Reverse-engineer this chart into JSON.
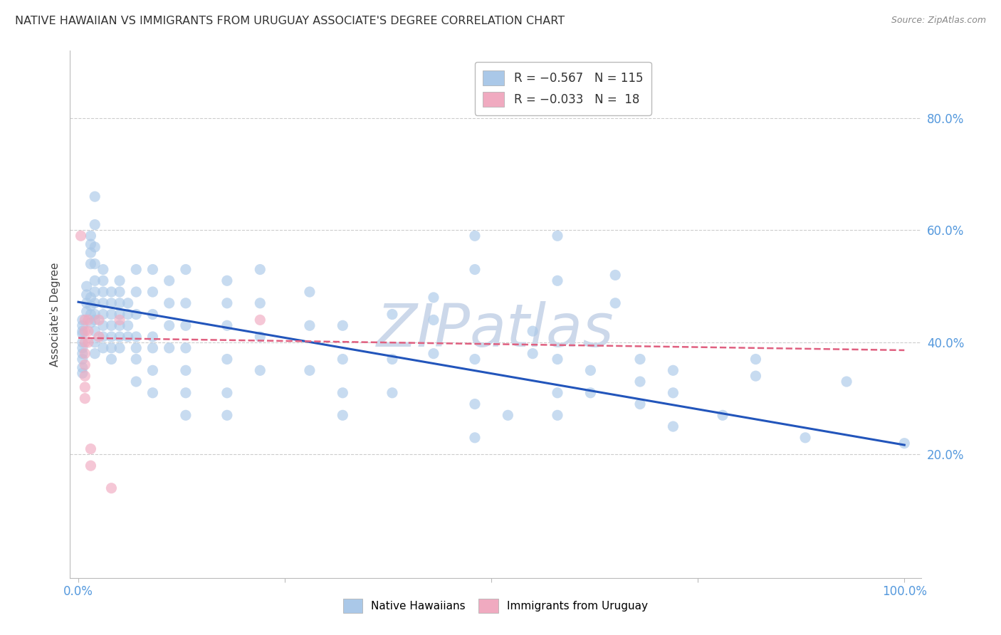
{
  "title": "NATIVE HAWAIIAN VS IMMIGRANTS FROM URUGUAY ASSOCIATE'S DEGREE CORRELATION CHART",
  "source": "Source: ZipAtlas.com",
  "ylabel": "Associate's Degree",
  "ytick_values": [
    0.2,
    0.4,
    0.6,
    0.8
  ],
  "xlim": [
    -0.01,
    1.02
  ],
  "ylim": [
    -0.02,
    0.92
  ],
  "watermark": "ZIPatlas",
  "blue_intercept": 0.472,
  "blue_slope": -0.255,
  "pink_intercept": 0.408,
  "pink_slope": -0.022,
  "blue_scatter": [
    [
      0.005,
      0.44
    ],
    [
      0.005,
      0.43
    ],
    [
      0.005,
      0.42
    ],
    [
      0.005,
      0.415
    ],
    [
      0.005,
      0.4
    ],
    [
      0.005,
      0.39
    ],
    [
      0.005,
      0.38
    ],
    [
      0.005,
      0.37
    ],
    [
      0.005,
      0.355
    ],
    [
      0.005,
      0.345
    ],
    [
      0.01,
      0.5
    ],
    [
      0.01,
      0.485
    ],
    [
      0.01,
      0.47
    ],
    [
      0.01,
      0.455
    ],
    [
      0.015,
      0.59
    ],
    [
      0.015,
      0.575
    ],
    [
      0.015,
      0.56
    ],
    [
      0.015,
      0.54
    ],
    [
      0.015,
      0.48
    ],
    [
      0.015,
      0.465
    ],
    [
      0.015,
      0.45
    ],
    [
      0.015,
      0.435
    ],
    [
      0.02,
      0.66
    ],
    [
      0.02,
      0.61
    ],
    [
      0.02,
      0.57
    ],
    [
      0.02,
      0.54
    ],
    [
      0.02,
      0.51
    ],
    [
      0.02,
      0.49
    ],
    [
      0.02,
      0.47
    ],
    [
      0.02,
      0.45
    ],
    [
      0.02,
      0.44
    ],
    [
      0.02,
      0.42
    ],
    [
      0.02,
      0.4
    ],
    [
      0.02,
      0.38
    ],
    [
      0.03,
      0.53
    ],
    [
      0.03,
      0.51
    ],
    [
      0.03,
      0.49
    ],
    [
      0.03,
      0.47
    ],
    [
      0.03,
      0.45
    ],
    [
      0.03,
      0.43
    ],
    [
      0.03,
      0.41
    ],
    [
      0.03,
      0.39
    ],
    [
      0.04,
      0.49
    ],
    [
      0.04,
      0.47
    ],
    [
      0.04,
      0.45
    ],
    [
      0.04,
      0.43
    ],
    [
      0.04,
      0.41
    ],
    [
      0.04,
      0.39
    ],
    [
      0.04,
      0.37
    ],
    [
      0.05,
      0.51
    ],
    [
      0.05,
      0.49
    ],
    [
      0.05,
      0.47
    ],
    [
      0.05,
      0.45
    ],
    [
      0.05,
      0.43
    ],
    [
      0.05,
      0.41
    ],
    [
      0.05,
      0.39
    ],
    [
      0.06,
      0.47
    ],
    [
      0.06,
      0.45
    ],
    [
      0.06,
      0.43
    ],
    [
      0.06,
      0.41
    ],
    [
      0.07,
      0.53
    ],
    [
      0.07,
      0.49
    ],
    [
      0.07,
      0.45
    ],
    [
      0.07,
      0.41
    ],
    [
      0.07,
      0.39
    ],
    [
      0.07,
      0.37
    ],
    [
      0.07,
      0.33
    ],
    [
      0.09,
      0.53
    ],
    [
      0.09,
      0.49
    ],
    [
      0.09,
      0.45
    ],
    [
      0.09,
      0.41
    ],
    [
      0.09,
      0.39
    ],
    [
      0.09,
      0.35
    ],
    [
      0.09,
      0.31
    ],
    [
      0.11,
      0.51
    ],
    [
      0.11,
      0.47
    ],
    [
      0.11,
      0.43
    ],
    [
      0.11,
      0.39
    ],
    [
      0.13,
      0.53
    ],
    [
      0.13,
      0.47
    ],
    [
      0.13,
      0.43
    ],
    [
      0.13,
      0.39
    ],
    [
      0.13,
      0.35
    ],
    [
      0.13,
      0.31
    ],
    [
      0.13,
      0.27
    ],
    [
      0.18,
      0.51
    ],
    [
      0.18,
      0.47
    ],
    [
      0.18,
      0.43
    ],
    [
      0.18,
      0.37
    ],
    [
      0.18,
      0.31
    ],
    [
      0.18,
      0.27
    ],
    [
      0.22,
      0.53
    ],
    [
      0.22,
      0.47
    ],
    [
      0.22,
      0.41
    ],
    [
      0.22,
      0.35
    ],
    [
      0.28,
      0.49
    ],
    [
      0.28,
      0.43
    ],
    [
      0.28,
      0.35
    ],
    [
      0.32,
      0.43
    ],
    [
      0.32,
      0.37
    ],
    [
      0.32,
      0.31
    ],
    [
      0.32,
      0.27
    ],
    [
      0.38,
      0.45
    ],
    [
      0.38,
      0.37
    ],
    [
      0.38,
      0.31
    ],
    [
      0.43,
      0.48
    ],
    [
      0.43,
      0.44
    ],
    [
      0.43,
      0.38
    ],
    [
      0.48,
      0.59
    ],
    [
      0.48,
      0.53
    ],
    [
      0.48,
      0.37
    ],
    [
      0.48,
      0.29
    ],
    [
      0.48,
      0.23
    ],
    [
      0.52,
      0.27
    ],
    [
      0.55,
      0.42
    ],
    [
      0.55,
      0.38
    ],
    [
      0.58,
      0.59
    ],
    [
      0.58,
      0.51
    ],
    [
      0.58,
      0.37
    ],
    [
      0.58,
      0.31
    ],
    [
      0.58,
      0.27
    ],
    [
      0.62,
      0.35
    ],
    [
      0.62,
      0.31
    ],
    [
      0.65,
      0.52
    ],
    [
      0.65,
      0.47
    ],
    [
      0.68,
      0.37
    ],
    [
      0.68,
      0.33
    ],
    [
      0.68,
      0.29
    ],
    [
      0.72,
      0.35
    ],
    [
      0.72,
      0.31
    ],
    [
      0.72,
      0.25
    ],
    [
      0.78,
      0.27
    ],
    [
      0.82,
      0.37
    ],
    [
      0.82,
      0.34
    ],
    [
      0.88,
      0.23
    ],
    [
      0.93,
      0.33
    ],
    [
      1.0,
      0.22
    ]
  ],
  "pink_scatter": [
    [
      0.003,
      0.59
    ],
    [
      0.008,
      0.44
    ],
    [
      0.008,
      0.42
    ],
    [
      0.008,
      0.4
    ],
    [
      0.008,
      0.38
    ],
    [
      0.008,
      0.36
    ],
    [
      0.008,
      0.34
    ],
    [
      0.008,
      0.32
    ],
    [
      0.008,
      0.3
    ],
    [
      0.012,
      0.44
    ],
    [
      0.012,
      0.42
    ],
    [
      0.012,
      0.4
    ],
    [
      0.015,
      0.21
    ],
    [
      0.015,
      0.18
    ],
    [
      0.025,
      0.44
    ],
    [
      0.025,
      0.41
    ],
    [
      0.04,
      0.14
    ],
    [
      0.05,
      0.44
    ],
    [
      0.22,
      0.44
    ]
  ],
  "blue_color": "#aac8e8",
  "pink_color": "#f0aac0",
  "blue_line_color": "#2255bb",
  "pink_line_color": "#e06080",
  "grid_color": "#cccccc",
  "tick_color": "#5599dd",
  "background_color": "#ffffff",
  "title_fontsize": 11.5,
  "axis_label_fontsize": 11,
  "tick_fontsize": 12,
  "watermark_color": "#ccd8ea",
  "watermark_fontsize": 60,
  "scatter_size": 120,
  "scatter_alpha": 0.65
}
